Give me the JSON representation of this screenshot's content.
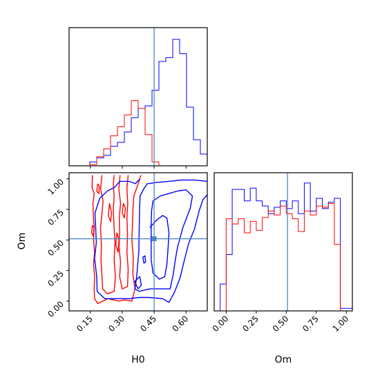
{
  "chart_data": {
    "type": "corner",
    "parameters": [
      "H0",
      "Om"
    ],
    "truth": {
      "H0": 0.45,
      "Om": 0.51
    },
    "truth_color": "#4a86c8",
    "series": [
      {
        "color": "#0000ff"
      },
      {
        "color": "#ff0000"
      }
    ],
    "h0_hist": {
      "xlim": [
        0.05,
        0.7
      ],
      "edges": [
        0.05,
        0.0825,
        0.115,
        0.1475,
        0.18,
        0.2125,
        0.245,
        0.2775,
        0.31,
        0.3425,
        0.375,
        0.4075,
        0.44,
        0.4725,
        0.505,
        0.5375,
        0.57,
        0.6025,
        0.635,
        0.6675,
        0.7
      ],
      "blue": [
        0,
        0,
        0,
        0.03,
        0.06,
        0.08,
        0.15,
        0.18,
        0.26,
        0.37,
        0.44,
        0.46,
        0.58,
        0.8,
        0.83,
        0.97,
        0.86,
        0.45,
        0.2,
        0.09
      ],
      "red": [
        0,
        0,
        0,
        0.01,
        0.07,
        0.13,
        0.23,
        0.3,
        0.39,
        0.5,
        0.44,
        0.24,
        0.03,
        0,
        0,
        0,
        0,
        0,
        0,
        0
      ]
    },
    "om_hist": {
      "xlim": [
        -0.1,
        1.05
      ],
      "edges": [
        -0.1,
        -0.05,
        0.0,
        0.05,
        0.1,
        0.15,
        0.2,
        0.25,
        0.3,
        0.35,
        0.4,
        0.45,
        0.5,
        0.55,
        0.6,
        0.65,
        0.7,
        0.75,
        0.8,
        0.85,
        0.9,
        0.95,
        1.0,
        1.05
      ],
      "blue": [
        0,
        0.21,
        0.44,
        0.95,
        0.95,
        0.86,
        0.96,
        0.86,
        0.82,
        0.76,
        0.81,
        0.86,
        0.8,
        0.86,
        0.76,
        1.0,
        0.78,
        0.88,
        0.8,
        0.85,
        0.88,
        0.02,
        0.02
      ],
      "red": [
        0,
        0,
        0.72,
        0.68,
        0.72,
        0.61,
        0.7,
        0.63,
        0.73,
        0.78,
        0.75,
        0.82,
        0.76,
        0.72,
        0.62,
        0.78,
        0.75,
        0.82,
        0.81,
        0.84,
        0.52,
        0,
        0
      ]
    },
    "joint": {
      "xlim": [
        0.05,
        0.7
      ],
      "ylim": [
        -0.08,
        1.05
      ],
      "blue_contours": [
        [
          [
            0.383,
            1.0
          ],
          [
            0.362,
            0.96
          ],
          [
            0.332,
            0.98
          ],
          [
            0.29,
            0.98
          ],
          [
            0.263,
            0.93
          ],
          [
            0.23,
            0.9
          ],
          [
            0.194,
            0.84
          ],
          [
            0.172,
            0.72
          ],
          [
            0.175,
            0.6
          ],
          [
            0.178,
            0.48
          ],
          [
            0.17,
            0.35
          ],
          [
            0.18,
            0.2
          ],
          [
            0.182,
            0.08
          ],
          [
            0.218,
            0.02
          ],
          [
            0.275,
            0.02
          ],
          [
            0.335,
            0.02
          ],
          [
            0.38,
            0.03
          ],
          [
            0.425,
            0.03
          ],
          [
            0.49,
            0.02
          ],
          [
            0.52,
            -0.01
          ],
          [
            0.545,
            0.07
          ],
          [
            0.572,
            0.19
          ],
          [
            0.59,
            0.32
          ],
          [
            0.612,
            0.47
          ],
          [
            0.64,
            0.59
          ],
          [
            0.662,
            0.74
          ],
          [
            0.68,
            0.83
          ],
          [
            0.7,
            0.87
          ]
        ],
        [
          [
            0.7,
            0.98
          ],
          [
            0.64,
            0.99
          ],
          [
            0.58,
            0.99
          ],
          [
            0.52,
            0.98
          ],
          [
            0.46,
            0.97
          ],
          [
            0.418,
            0.96
          ],
          [
            0.402,
            0.92
          ],
          [
            0.384,
            0.86
          ],
          [
            0.382,
            0.78
          ],
          [
            0.38,
            0.6
          ],
          [
            0.378,
            0.4
          ],
          [
            0.368,
            0.2
          ],
          [
            0.36,
            0.1
          ],
          [
            0.38,
            0.08
          ],
          [
            0.43,
            0.1
          ],
          [
            0.49,
            0.1
          ],
          [
            0.525,
            0.1
          ],
          [
            0.54,
            0.22
          ],
          [
            0.55,
            0.34
          ],
          [
            0.56,
            0.44
          ],
          [
            0.585,
            0.6
          ],
          [
            0.62,
            0.76
          ],
          [
            0.63,
            0.86
          ],
          [
            0.6,
            0.91
          ],
          [
            0.56,
            0.9
          ],
          [
            0.52,
            0.88
          ],
          [
            0.48,
            0.86
          ],
          [
            0.445,
            0.82
          ],
          [
            0.438,
            0.74
          ],
          [
            0.436,
            0.62
          ],
          [
            0.436,
            0.48
          ],
          [
            0.436,
            0.34
          ],
          [
            0.445,
            0.23
          ],
          [
            0.475,
            0.18
          ],
          [
            0.5,
            0.2
          ],
          [
            0.51,
            0.3
          ],
          [
            0.515,
            0.42
          ],
          [
            0.52,
            0.56
          ],
          [
            0.51,
            0.68
          ],
          [
            0.49,
            0.7
          ],
          [
            0.46,
            0.66
          ],
          [
            0.43,
            0.6
          ]
        ],
        [
          [
            0.375,
            0.1
          ],
          [
            0.358,
            0.16
          ],
          [
            0.382,
            0.2
          ],
          [
            0.39,
            0.13
          ],
          [
            0.375,
            0.1
          ]
        ],
        [
          [
            0.402,
            0.31
          ],
          [
            0.397,
            0.36
          ],
          [
            0.407,
            0.37
          ],
          [
            0.41,
            0.32
          ],
          [
            0.402,
            0.31
          ]
        ]
      ],
      "red_contours": [
        [
          [
            0.16,
            1.03
          ],
          [
            0.158,
            0.93
          ],
          [
            0.168,
            0.88
          ],
          [
            0.162,
            0.8
          ],
          [
            0.164,
            0.7
          ],
          [
            0.168,
            0.6
          ],
          [
            0.165,
            0.5
          ],
          [
            0.17,
            0.4
          ],
          [
            0.165,
            0.3
          ],
          [
            0.17,
            0.2
          ],
          [
            0.168,
            0.1
          ],
          [
            0.17,
            0.02
          ],
          [
            0.185,
            -0.02
          ],
          [
            0.21,
            0.0
          ],
          [
            0.232,
            0.02
          ],
          [
            0.26,
            0.01
          ],
          [
            0.285,
            0.0
          ],
          [
            0.31,
            0.01
          ],
          [
            0.345,
            0.0
          ],
          [
            0.36,
            0.1
          ],
          [
            0.35,
            0.22
          ],
          [
            0.352,
            0.36
          ],
          [
            0.345,
            0.5
          ],
          [
            0.348,
            0.62
          ],
          [
            0.35,
            0.74
          ],
          [
            0.355,
            0.86
          ],
          [
            0.375,
            0.96
          ],
          [
            0.388,
            1.03
          ]
        ],
        [
          [
            0.205,
            1.03
          ],
          [
            0.198,
            0.92
          ],
          [
            0.21,
            0.82
          ],
          [
            0.205,
            0.72
          ],
          [
            0.198,
            0.6
          ],
          [
            0.202,
            0.46
          ],
          [
            0.2,
            0.34
          ],
          [
            0.205,
            0.2
          ],
          [
            0.208,
            0.1
          ],
          [
            0.23,
            0.06
          ],
          [
            0.262,
            0.08
          ],
          [
            0.268,
            0.2
          ],
          [
            0.262,
            0.34
          ],
          [
            0.266,
            0.48
          ],
          [
            0.262,
            0.6
          ],
          [
            0.258,
            0.74
          ],
          [
            0.262,
            0.86
          ],
          [
            0.258,
            0.96
          ],
          [
            0.262,
            1.03
          ]
        ],
        [
          [
            0.29,
            1.03
          ],
          [
            0.284,
            0.92
          ],
          [
            0.292,
            0.8
          ],
          [
            0.286,
            0.68
          ],
          [
            0.288,
            0.56
          ],
          [
            0.285,
            0.44
          ],
          [
            0.292,
            0.32
          ],
          [
            0.288,
            0.2
          ],
          [
            0.3,
            0.1
          ],
          [
            0.325,
            0.12
          ],
          [
            0.328,
            0.26
          ],
          [
            0.322,
            0.4
          ],
          [
            0.325,
            0.54
          ],
          [
            0.322,
            0.68
          ],
          [
            0.326,
            0.8
          ],
          [
            0.322,
            0.92
          ],
          [
            0.328,
            1.03
          ]
        ],
        [
          [
            0.185,
            0.96
          ],
          [
            0.18,
            0.9
          ],
          [
            0.19,
            0.88
          ],
          [
            0.192,
            0.94
          ],
          [
            0.185,
            0.96
          ]
        ],
        [
          [
            0.24,
            0.8
          ],
          [
            0.235,
            0.7
          ],
          [
            0.245,
            0.65
          ],
          [
            0.25,
            0.72
          ],
          [
            0.24,
            0.8
          ]
        ],
        [
          [
            0.275,
            0.56
          ],
          [
            0.27,
            0.46
          ],
          [
            0.28,
            0.4
          ],
          [
            0.285,
            0.5
          ],
          [
            0.275,
            0.56
          ]
        ],
        [
          [
            0.305,
            0.8
          ],
          [
            0.3,
            0.72
          ],
          [
            0.31,
            0.68
          ],
          [
            0.315,
            0.76
          ],
          [
            0.305,
            0.8
          ]
        ],
        [
          [
            0.16,
            0.62
          ],
          [
            0.156,
            0.56
          ],
          [
            0.164,
            0.53
          ],
          [
            0.167,
            0.6
          ],
          [
            0.16,
            0.62
          ]
        ]
      ]
    },
    "h0_ticks": [
      0.15,
      0.3,
      0.45,
      0.6
    ],
    "h0_tick_labels": [
      "0.15",
      "0.30",
      "0.45",
      "0.60"
    ],
    "om_ticks": [
      0.0,
      0.25,
      0.5,
      0.75,
      1.0
    ],
    "om_tick_labels": [
      "0.00",
      "0.25",
      "0.50",
      "0.75",
      "1.00"
    ],
    "xlabel_h0": "H0",
    "ylabel_om": "Om",
    "xlabel_om": "Om"
  }
}
